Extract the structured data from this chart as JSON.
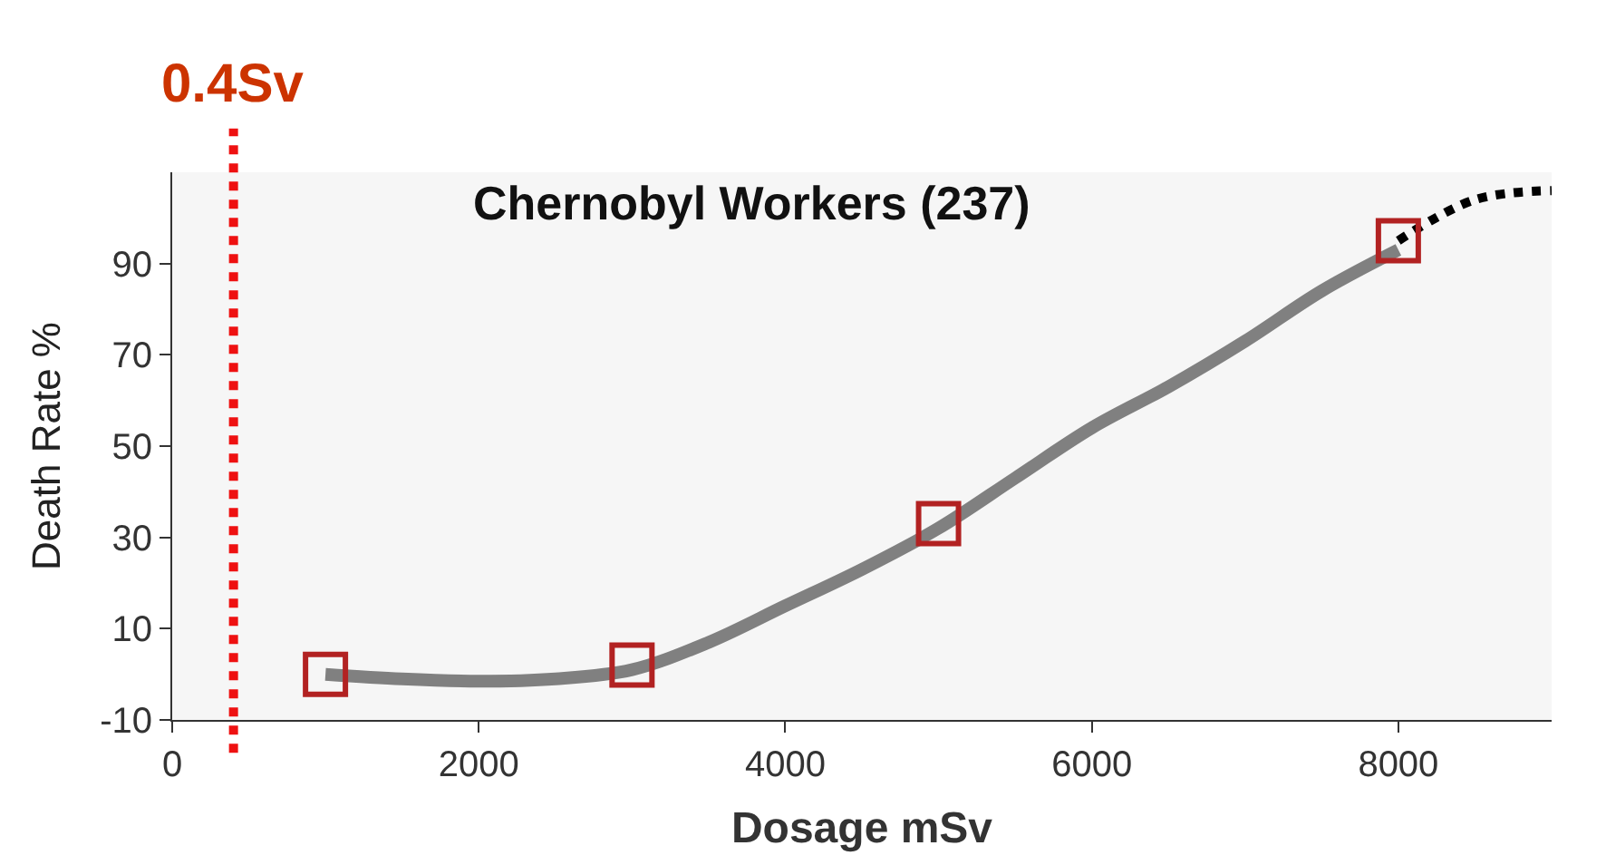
{
  "chart_data": {
    "type": "scatter",
    "title": "Chernobyl Workers (237)",
    "xlabel": "Dosage mSv",
    "ylabel": "Death Rate %",
    "xlim": [
      0,
      9000
    ],
    "ylim": [
      -10,
      110
    ],
    "xticks": [
      0,
      2000,
      4000,
      6000,
      8000
    ],
    "yticks": [
      -10,
      10,
      30,
      50,
      70,
      90
    ],
    "grid": false,
    "legend": false,
    "series": [
      {
        "type": "line",
        "color": "#808080",
        "line_style": "solid",
        "marker": "none",
        "x": [
          1000,
          1500,
          2000,
          2500,
          3000,
          3500,
          4000,
          4500,
          5000,
          5500,
          6000,
          6500,
          7000,
          7500,
          8000
        ],
        "values": [
          0,
          -1,
          -1.5,
          -1,
          1,
          7,
          15,
          23,
          32,
          43,
          54,
          63,
          73,
          84,
          93
        ]
      },
      {
        "type": "line",
        "color": "#000000",
        "line_style": "dotted",
        "marker": "none",
        "x": [
          8000,
          8500,
          9000
        ],
        "values": [
          95,
          104,
          106
        ]
      },
      {
        "color": "#b22222",
        "marker": "square",
        "x": [
          1000,
          3000,
          5000,
          8000
        ],
        "values": [
          0,
          2,
          33,
          95
        ]
      }
    ],
    "ref_lines": [
      {
        "axis": "x",
        "value": 400,
        "label": "0.4Sv",
        "color": "#ee1111",
        "line_style": "dotted"
      }
    ]
  }
}
